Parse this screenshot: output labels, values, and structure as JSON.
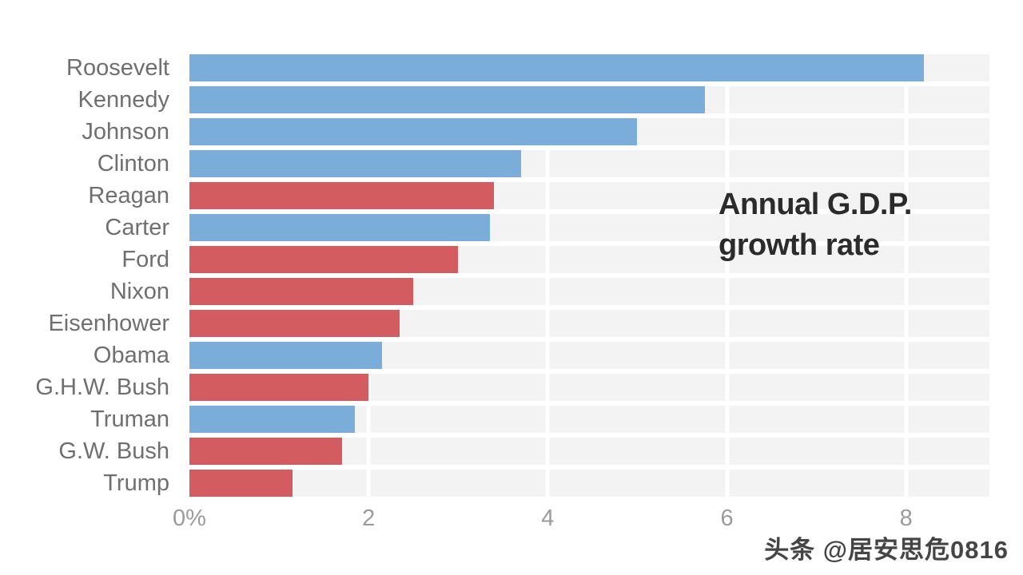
{
  "chart_data": {
    "type": "bar",
    "orientation": "horizontal",
    "title": "Annual G.D.P. growth rate",
    "title_lines": [
      "Annual G.D.P.",
      "growth rate"
    ],
    "categories": [
      "Roosevelt",
      "Kennedy",
      "Johnson",
      "Clinton",
      "Reagan",
      "Carter",
      "Ford",
      "Nixon",
      "Eisenhower",
      "Obama",
      "G.H.W. Bush",
      "Truman",
      "G.W. Bush",
      "Trump"
    ],
    "values": [
      8.2,
      5.75,
      5.0,
      3.7,
      3.4,
      3.35,
      3.0,
      2.5,
      2.35,
      2.15,
      2.0,
      1.85,
      1.7,
      1.15
    ],
    "parties": [
      "D",
      "D",
      "D",
      "D",
      "R",
      "D",
      "R",
      "R",
      "R",
      "D",
      "R",
      "D",
      "R",
      "R"
    ],
    "x_ticks": {
      "labels": [
        "0%",
        "2",
        "4",
        "6",
        "8"
      ],
      "values": [
        0,
        2,
        4,
        6,
        8
      ]
    },
    "xlim": [
      0,
      8.93
    ],
    "ylabel": "",
    "xlabel": "",
    "legend": "none",
    "grid": "vertical white gridlines at ticks 2, 4, 6, 8 over gray row stripes"
  },
  "colors": {
    "democrat": "#7badda",
    "republican": "#d25c5f",
    "plot_background": "#f3f3f4",
    "gridline": "#ffffff",
    "category_label": "#6f6f6f",
    "tick_label": "#9b9b9b",
    "title": "#2b2b2b",
    "watermark": "#454545",
    "page_background": "#ffffff"
  },
  "watermark": {
    "text": "头条 @居安思危0816"
  }
}
